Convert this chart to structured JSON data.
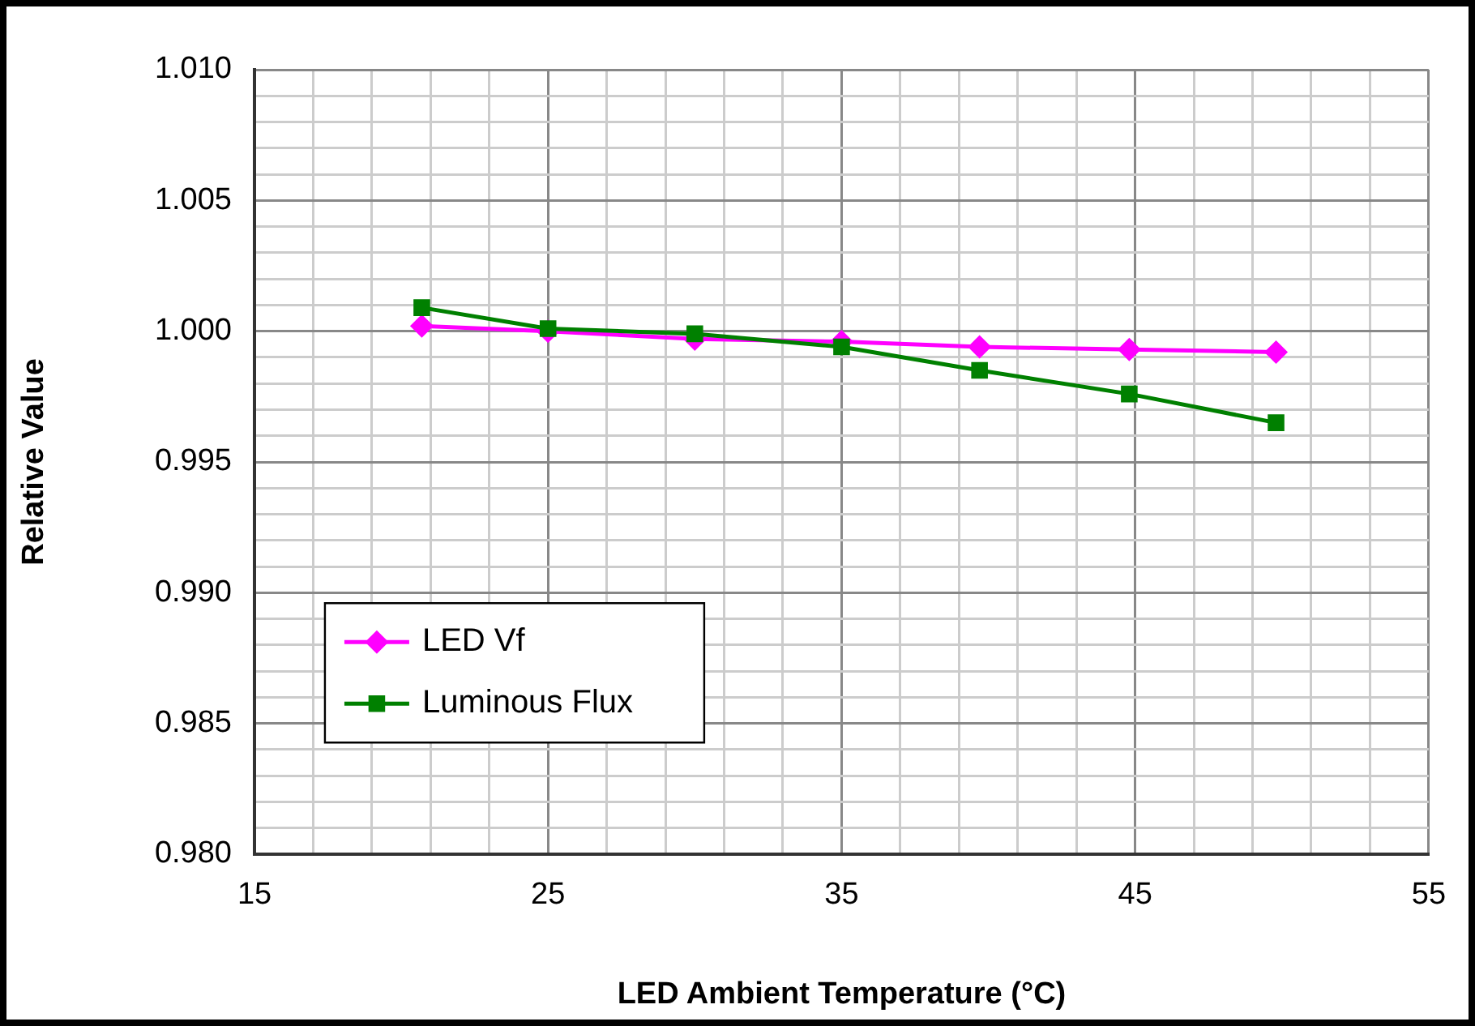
{
  "chart_data": {
    "type": "line",
    "xlabel": "LED Ambient Temperature (°C)",
    "ylabel": "Relative Value",
    "xlim": [
      15,
      55
    ],
    "xticks": [
      15,
      {
        "value": 17,
        "label": null
      },
      {
        "value": 19,
        "label": null
      },
      {
        "value": 21,
        "label": null
      },
      {
        "value": 23,
        "label": null
      },
      25,
      {
        "value": 27,
        "label": null
      },
      {
        "value": 29,
        "label": null
      },
      {
        "value": 31,
        "label": null
      },
      {
        "value": 33,
        "label": null
      },
      35,
      {
        "value": 37,
        "label": null
      },
      {
        "value": 39,
        "label": null
      },
      {
        "value": 41,
        "label": null
      },
      {
        "value": 43,
        "label": null
      },
      45,
      {
        "value": 47,
        "label": null
      },
      {
        "value": 49,
        "label": null
      },
      {
        "value": 51,
        "label": null
      },
      {
        "value": 53,
        "label": null
      },
      55
    ],
    "ylim": [
      0.98,
      1.01
    ],
    "yticks": [
      {
        "value": 0.98,
        "label": "0.980"
      },
      {
        "value": 0.981,
        "label": null
      },
      {
        "value": 0.982,
        "label": null
      },
      {
        "value": 0.983,
        "label": null
      },
      {
        "value": 0.984,
        "label": null
      },
      {
        "value": 0.985,
        "label": "0.985"
      },
      {
        "value": 0.986,
        "label": null
      },
      {
        "value": 0.987,
        "label": null
      },
      {
        "value": 0.988,
        "label": null
      },
      {
        "value": 0.989,
        "label": null
      },
      {
        "value": 0.99,
        "label": "0.990"
      },
      {
        "value": 0.991,
        "label": null
      },
      {
        "value": 0.992,
        "label": null
      },
      {
        "value": 0.993,
        "label": null
      },
      {
        "value": 0.994,
        "label": null
      },
      {
        "value": 0.995,
        "label": "0.995"
      },
      {
        "value": 0.996,
        "label": null
      },
      {
        "value": 0.997,
        "label": null
      },
      {
        "value": 0.998,
        "label": null
      },
      {
        "value": 0.999,
        "label": null
      },
      {
        "value": 1.0,
        "label": "1.000"
      },
      {
        "value": 1.001,
        "label": null
      },
      {
        "value": 1.002,
        "label": null
      },
      {
        "value": 1.003,
        "label": null
      },
      {
        "value": 1.004,
        "label": null
      },
      {
        "value": 1.005,
        "label": "1.005"
      },
      {
        "value": 1.006,
        "label": null
      },
      {
        "value": 1.007,
        "label": null
      },
      {
        "value": 1.008,
        "label": null
      },
      {
        "value": 1.009,
        "label": null
      },
      {
        "value": 1.01,
        "label": "1.010"
      }
    ],
    "x": [
      20.7,
      25,
      30,
      35,
      39.7,
      44.8,
      49.8
    ],
    "series": [
      {
        "name": "LED Vf",
        "color": "#ff00ff",
        "marker": "diamond",
        "values": [
          1.0002,
          1.0,
          0.9997,
          0.9996,
          0.9994,
          0.9993,
          0.9992
        ]
      },
      {
        "name": "Luminous Flux",
        "color": "#008000",
        "marker": "square",
        "values": [
          1.0009,
          1.0001,
          0.9999,
          0.9994,
          0.9985,
          0.9976,
          0.9965
        ]
      }
    ],
    "grid": true,
    "legend": "left",
    "line_style": "solid"
  }
}
